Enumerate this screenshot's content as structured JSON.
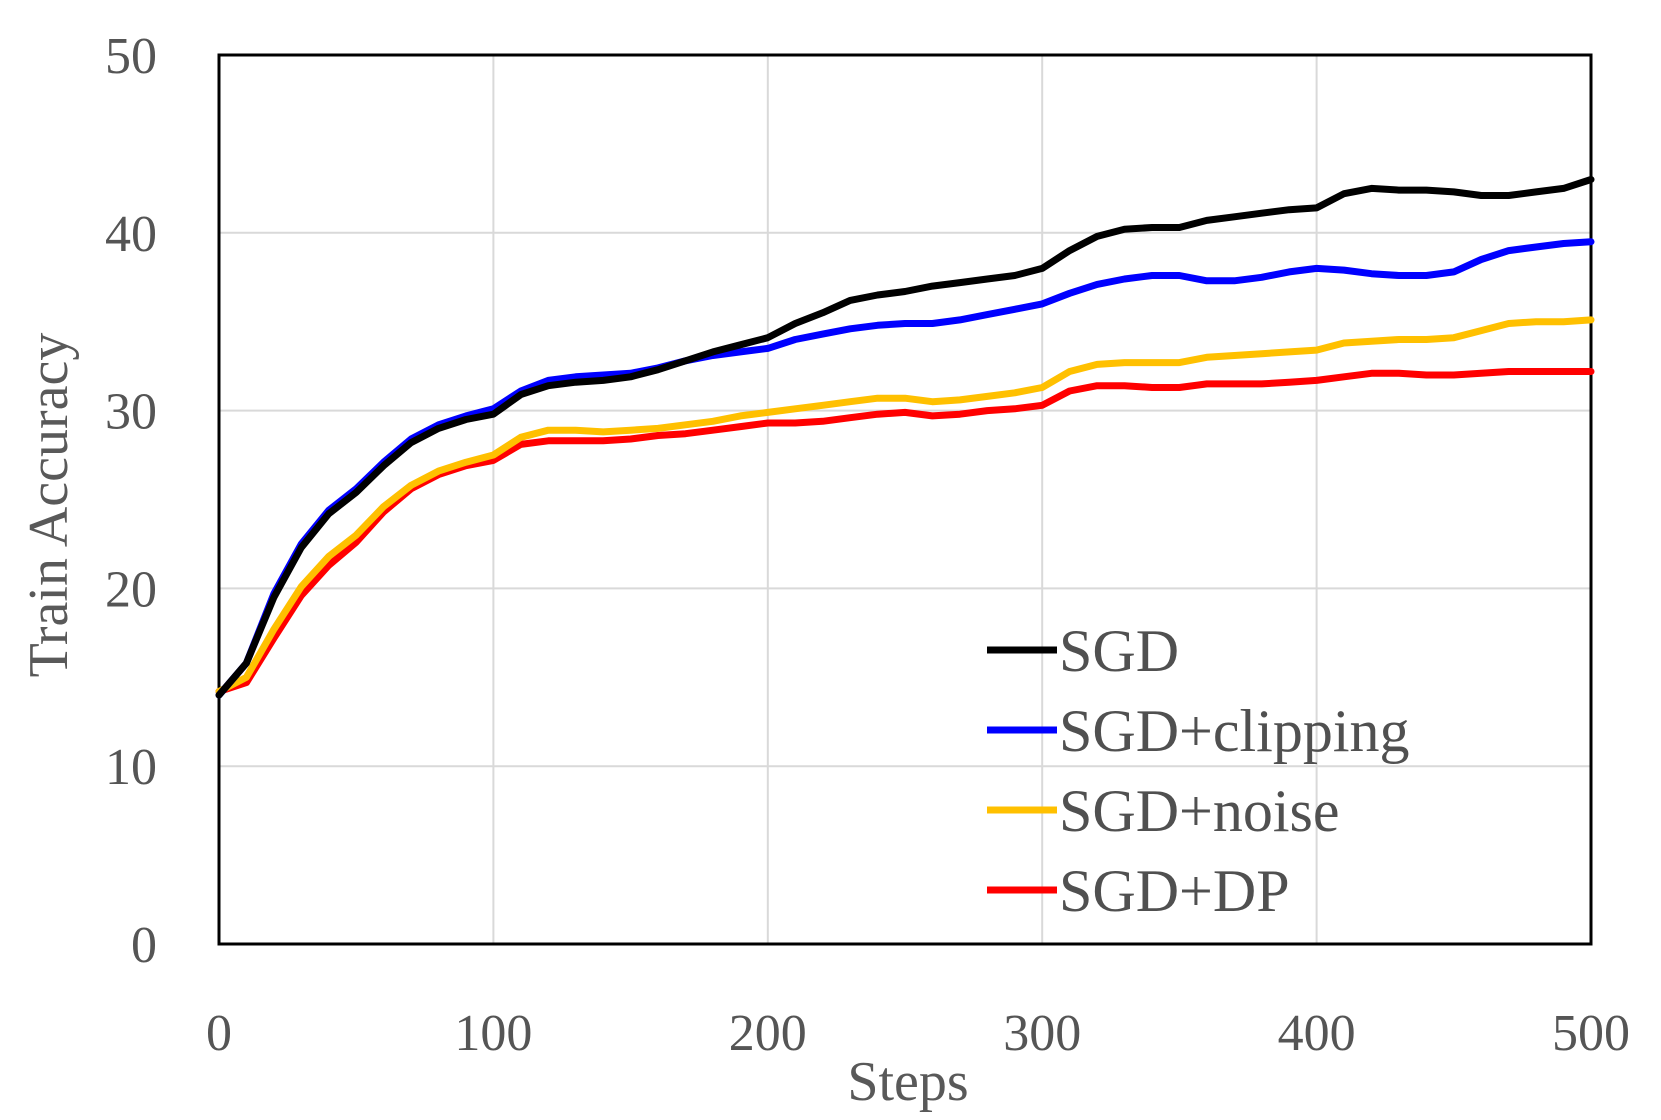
{
  "chart_data": {
    "type": "line",
    "title": "",
    "xlabel": "Steps",
    "ylabel": "Train Accuracy",
    "xlim": [
      0,
      500
    ],
    "ylim": [
      0,
      50
    ],
    "xticks": [
      0,
      100,
      200,
      300,
      400,
      500
    ],
    "yticks": [
      0,
      10,
      20,
      30,
      40,
      50
    ],
    "xtick_labels": [
      "0",
      "100",
      "200",
      "300",
      "400",
      "500"
    ],
    "ytick_labels": [
      "0",
      "10",
      "20",
      "30",
      "40",
      "50"
    ],
    "grid": true,
    "legend_position": "bottom-right",
    "x": [
      0,
      10,
      20,
      30,
      40,
      50,
      60,
      70,
      80,
      90,
      100,
      110,
      120,
      130,
      140,
      150,
      160,
      170,
      180,
      190,
      200,
      210,
      220,
      230,
      240,
      250,
      260,
      270,
      280,
      290,
      300,
      310,
      320,
      330,
      340,
      350,
      360,
      370,
      380,
      390,
      400,
      410,
      420,
      430,
      440,
      450,
      460,
      470,
      480,
      490,
      500
    ],
    "series": [
      {
        "name": "SGD",
        "color": "#000000",
        "values": [
          14.0,
          15.8,
          19.5,
          22.3,
          24.2,
          25.4,
          26.9,
          28.2,
          29.0,
          29.5,
          29.8,
          30.9,
          31.4,
          31.6,
          31.7,
          31.9,
          32.3,
          32.8,
          33.3,
          33.7,
          34.1,
          34.9,
          35.5,
          36.2,
          36.5,
          36.7,
          37.0,
          37.2,
          37.4,
          37.6,
          38.0,
          39.0,
          39.8,
          40.2,
          40.3,
          40.3,
          40.7,
          40.9,
          41.1,
          41.3,
          41.4,
          42.2,
          42.5,
          42.4,
          42.4,
          42.3,
          42.1,
          42.1,
          42.3,
          42.5,
          43.0
        ]
      },
      {
        "name": "SGD+clipping",
        "color": "#0000ff",
        "values": [
          14.0,
          15.8,
          19.7,
          22.5,
          24.4,
          25.6,
          27.1,
          28.4,
          29.2,
          29.7,
          30.1,
          31.1,
          31.7,
          31.9,
          32.0,
          32.1,
          32.4,
          32.8,
          33.1,
          33.3,
          33.5,
          34.0,
          34.3,
          34.6,
          34.8,
          34.9,
          34.9,
          35.1,
          35.4,
          35.7,
          36.0,
          36.6,
          37.1,
          37.4,
          37.6,
          37.6,
          37.3,
          37.3,
          37.5,
          37.8,
          38.0,
          37.9,
          37.7,
          37.6,
          37.6,
          37.8,
          38.5,
          39.0,
          39.2,
          39.4,
          39.5
        ]
      },
      {
        "name": "SGD+noise",
        "color": "#ffc000",
        "values": [
          14.2,
          15.0,
          17.7,
          20.1,
          21.8,
          23.0,
          24.6,
          25.8,
          26.6,
          27.1,
          27.5,
          28.5,
          28.9,
          28.9,
          28.8,
          28.9,
          29.0,
          29.2,
          29.4,
          29.7,
          29.9,
          30.1,
          30.3,
          30.5,
          30.7,
          30.7,
          30.5,
          30.6,
          30.8,
          31.0,
          31.3,
          32.2,
          32.6,
          32.7,
          32.7,
          32.7,
          33.0,
          33.1,
          33.2,
          33.3,
          33.4,
          33.8,
          33.9,
          34.0,
          34.0,
          34.1,
          34.5,
          34.9,
          35.0,
          35.0,
          35.1
        ]
      },
      {
        "name": "SGD+DP",
        "color": "#ff0000",
        "values": [
          14.2,
          14.7,
          17.2,
          19.6,
          21.3,
          22.6,
          24.3,
          25.6,
          26.4,
          26.9,
          27.2,
          28.1,
          28.3,
          28.3,
          28.3,
          28.4,
          28.6,
          28.7,
          28.9,
          29.1,
          29.3,
          29.3,
          29.4,
          29.6,
          29.8,
          29.9,
          29.7,
          29.8,
          30.0,
          30.1,
          30.3,
          31.1,
          31.4,
          31.4,
          31.3,
          31.3,
          31.5,
          31.5,
          31.5,
          31.6,
          31.7,
          31.9,
          32.1,
          32.1,
          32.0,
          32.0,
          32.1,
          32.2,
          32.2,
          32.2,
          32.2
        ]
      }
    ]
  }
}
